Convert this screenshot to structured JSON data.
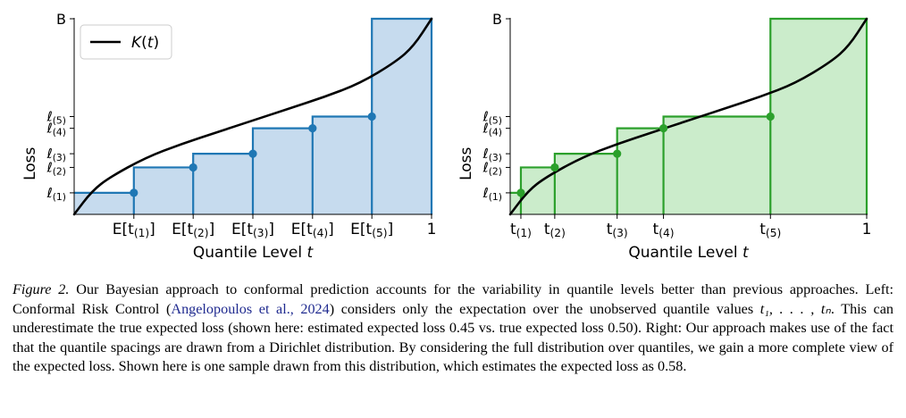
{
  "chart_data": [
    {
      "type": "line",
      "panel": "left",
      "title": "",
      "xlabel": "Quantile Level t",
      "ylabel": "Loss",
      "xlim": [
        0,
        1
      ],
      "ylim": [
        0,
        1
      ],
      "x_ticks": [
        "E[t(1)]",
        "E[t(2)]",
        "E[t(3)]",
        "E[t(4)]",
        "E[t(5)]",
        "1"
      ],
      "x_tick_values": [
        0.167,
        0.333,
        0.5,
        0.667,
        0.833,
        1.0
      ],
      "y_ticks": [
        "ℓ(1)",
        "ℓ(2)",
        "ℓ(3)",
        "ℓ(4)",
        "ℓ(5)",
        "B"
      ],
      "y_tick_values": [
        0.11,
        0.24,
        0.31,
        0.44,
        0.5,
        1.0
      ],
      "legend": {
        "position": "top-left",
        "entries": [
          "K(t)"
        ]
      },
      "color": "#1f77b4",
      "fill": "#c6dbee",
      "curve_color": "#000000",
      "step_points": [
        {
          "x": 0.167,
          "y": 0.11
        },
        {
          "x": 0.333,
          "y": 0.24
        },
        {
          "x": 0.5,
          "y": 0.31
        },
        {
          "x": 0.667,
          "y": 0.44
        },
        {
          "x": 0.833,
          "y": 0.5
        }
      ],
      "final_step": {
        "x": 1.0,
        "y": 1.0
      },
      "curve": {
        "name": "K(t)",
        "x": [
          0,
          0.05,
          0.1,
          0.2,
          0.3,
          0.4,
          0.5,
          0.6,
          0.7,
          0.8,
          0.9,
          0.95,
          1.0
        ],
        "y": [
          0,
          0.12,
          0.19,
          0.29,
          0.36,
          0.42,
          0.48,
          0.54,
          0.6,
          0.67,
          0.78,
          0.86,
          1.0
        ]
      }
    },
    {
      "type": "line",
      "panel": "right",
      "title": "",
      "xlabel": "Quantile Level t",
      "ylabel": "Loss",
      "xlim": [
        0,
        1
      ],
      "ylim": [
        0,
        1
      ],
      "x_ticks": [
        "t(1)",
        "t(2)",
        "t(3)",
        "t(4)",
        "t(5)",
        "1"
      ],
      "x_tick_values": [
        0.03,
        0.125,
        0.3,
        0.43,
        0.73,
        1.0
      ],
      "y_ticks": [
        "ℓ(1)",
        "ℓ(2)",
        "ℓ(3)",
        "ℓ(4)",
        "ℓ(5)",
        "B"
      ],
      "y_tick_values": [
        0.11,
        0.24,
        0.31,
        0.44,
        0.5,
        1.0
      ],
      "color": "#2ca02c",
      "fill": "#cbeccb",
      "curve_color": "#000000",
      "step_points": [
        {
          "x": 0.03,
          "y": 0.11
        },
        {
          "x": 0.125,
          "y": 0.24
        },
        {
          "x": 0.3,
          "y": 0.31
        },
        {
          "x": 0.43,
          "y": 0.44
        },
        {
          "x": 0.73,
          "y": 0.5
        }
      ],
      "final_step": {
        "x": 1.0,
        "y": 1.0
      },
      "curve": {
        "name": "K(t)",
        "x": [
          0,
          0.05,
          0.1,
          0.2,
          0.3,
          0.4,
          0.5,
          0.6,
          0.7,
          0.8,
          0.9,
          0.95,
          1.0
        ],
        "y": [
          0,
          0.12,
          0.19,
          0.29,
          0.36,
          0.42,
          0.48,
          0.54,
          0.6,
          0.67,
          0.78,
          0.86,
          1.0
        ]
      }
    }
  ],
  "caption": {
    "label": "Figure 2.",
    "part1": " Our Bayesian approach to conformal prediction accounts for the variability in quantile levels better than previous approaches. Left: Conformal Risk Control (",
    "citation": "Angelopoulos et al., 2024",
    "part2": ") considers only the expectation over the unobserved quantile values ",
    "math_vars": "t₁, . . . , tₙ",
    "part3": ". This can underestimate the true expected loss (shown here: estimated expected loss 0.45 vs. true expected loss 0.50). Right: Our approach makes use of the fact that the quantile spacings are drawn from a Dirichlet distribution. By considering the full distribution over quantiles, we gain a more complete view of the expected loss. Shown here is one sample drawn from this distribution, which estimates the expected loss as 0.58."
  }
}
